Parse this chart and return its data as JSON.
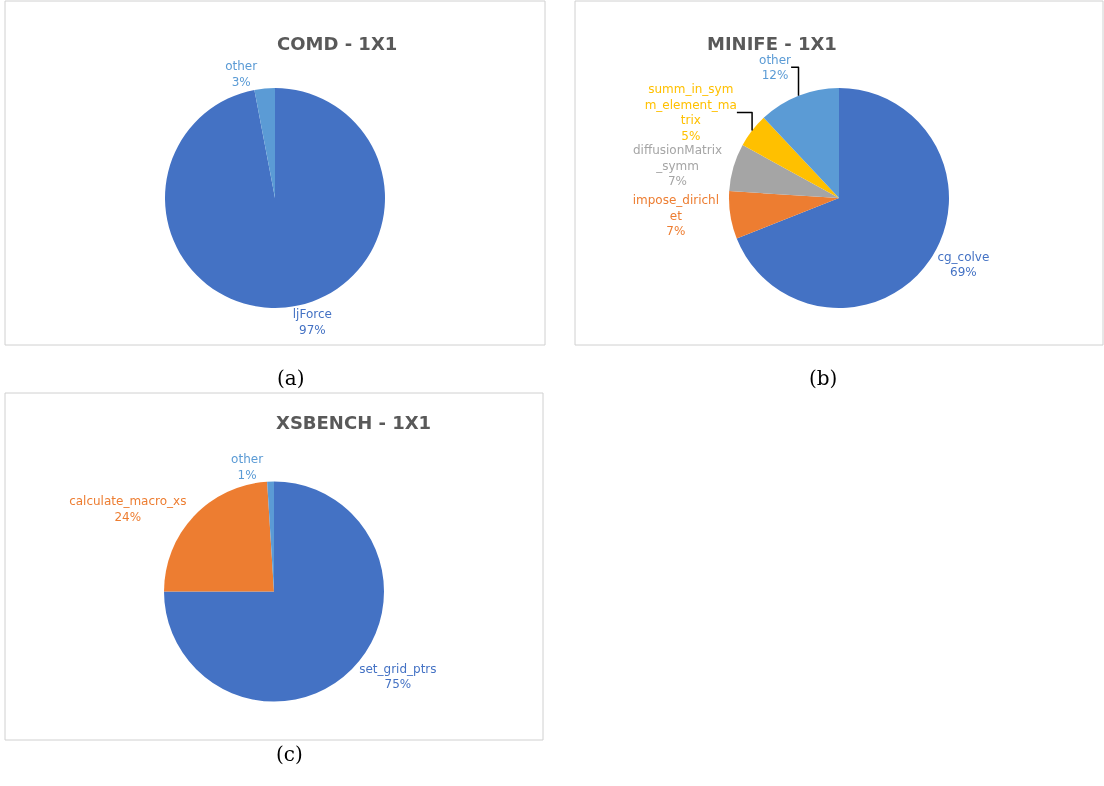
{
  "chart_data": [
    {
      "type": "pie",
      "title": "COMD - 1X1",
      "categories": [
        "ljForce",
        "other"
      ],
      "values": [
        97,
        3
      ],
      "value_labels": [
        "97%",
        "3%"
      ],
      "colors": [
        "#4472c4",
        "#5b9bd5"
      ],
      "annotations": [
        "(a)"
      ]
    },
    {
      "type": "pie",
      "title": "MINIFE - 1X1",
      "categories": [
        "cg_colve",
        "impose_dirichl\net",
        "diffusionMatrix\n_symm",
        "summ_in_sym\nm_element_ma\ntrix",
        "other"
      ],
      "values": [
        69,
        7,
        7,
        5,
        12
      ],
      "value_labels": [
        "69%",
        "7%",
        "7%",
        "5%",
        "12%"
      ],
      "colors": [
        "#4472c4",
        "#ed7d31",
        "#a5a5a5",
        "#ffc000",
        "#5b9bd5"
      ],
      "annotations": [
        "(b)"
      ]
    },
    {
      "type": "pie",
      "title": "XSBENCH - 1X1",
      "categories": [
        "set_grid_ptrs",
        "calculate_macro_xs",
        "other"
      ],
      "values": [
        75,
        24,
        1
      ],
      "value_labels": [
        "75%",
        "24%",
        "1%"
      ],
      "colors": [
        "#4472c4",
        "#ed7d31",
        "#5b9bd5"
      ],
      "annotations": [
        "(c)"
      ]
    }
  ]
}
